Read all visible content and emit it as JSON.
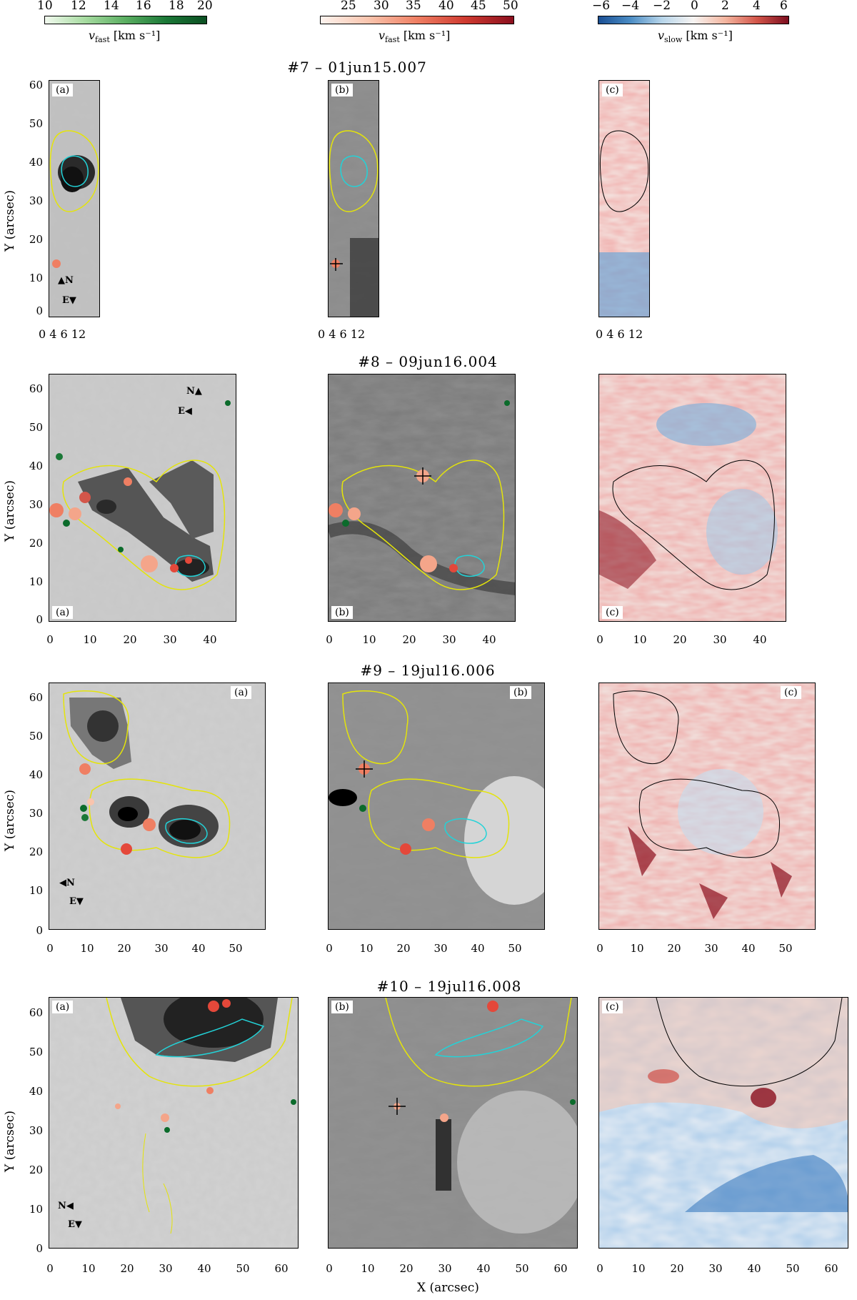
{
  "colorbars": [
    {
      "ticks": [
        "10",
        "12",
        "14",
        "16",
        "18",
        "20"
      ],
      "label_sym": "v",
      "label_sub": "fast",
      "label_unit": "[km s⁻¹]"
    },
    {
      "ticks": [
        "25",
        "30",
        "35",
        "40",
        "45",
        "50"
      ],
      "label_sym": "v",
      "label_sub": "fast",
      "label_unit": "[km s⁻¹]"
    },
    {
      "ticks": [
        "−6",
        "−4",
        "−2",
        "0",
        "2",
        "4",
        "6"
      ],
      "label_sym": "v",
      "label_sub": "slow",
      "label_unit": "[km s⁻¹]"
    }
  ],
  "colors": {
    "green_low": "#f2faef",
    "green_high": "#0b6b2b",
    "red_low": "#fdf1ec",
    "red_high": "#8b0f1e",
    "blue": "#1f5fa8",
    "contour_yellow": "#e4e40a",
    "contour_cyan": "#22d3d8"
  },
  "rows": [
    {
      "title": "#7  –  01jun15.007",
      "yticks": [
        "0",
        "10",
        "20",
        "30",
        "40",
        "50",
        "60"
      ],
      "xticks": [
        "0",
        "4",
        "6",
        "12"
      ],
      "xticks_extra": "0 4 6 12"
    },
    {
      "title": "#8  –  09jun16.004",
      "yticks": [
        "0",
        "10",
        "20",
        "30",
        "40",
        "50",
        "60"
      ],
      "xticks": [
        "0",
        "10",
        "20",
        "30",
        "40"
      ]
    },
    {
      "title": "#9  –  19jul16.006",
      "yticks": [
        "0",
        "10",
        "20",
        "30",
        "40",
        "50",
        "60"
      ],
      "xticks": [
        "0",
        "10",
        "20",
        "30",
        "40",
        "50"
      ]
    },
    {
      "title": "#10  –  19jul16.008",
      "yticks": [
        "0",
        "10",
        "20",
        "30",
        "40",
        "50",
        "60"
      ],
      "xticks": [
        "0",
        "10",
        "20",
        "30",
        "40",
        "50",
        "60"
      ]
    }
  ],
  "panel_labels": [
    "(a)",
    "(b)",
    "(c)"
  ],
  "row1_xticks": [
    "0",
    "4",
    "6",
    "12"
  ],
  "y_axis_title": "Y (arcsec)",
  "x_axis_title": "X (arcsec)",
  "compass": {
    "north": "N",
    "east": "E"
  }
}
